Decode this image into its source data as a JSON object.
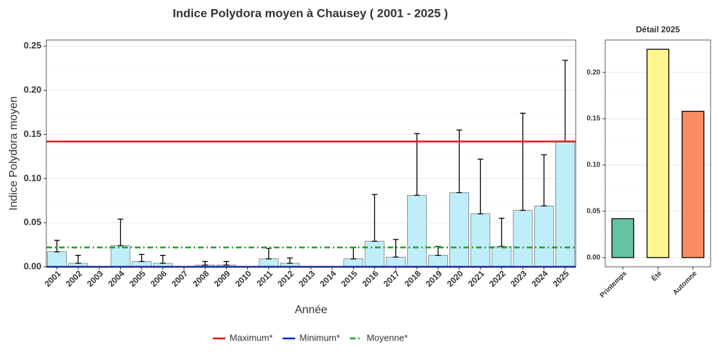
{
  "chart_data": [
    {
      "type": "bar",
      "title": "Indice Polydora moyen à Chausey ( 2001 - 2025 )",
      "x_label": "Année",
      "y_label": "Indice Polydora moyen",
      "categories": [
        "2001",
        "2002",
        "2003",
        "2004",
        "2005",
        "2006",
        "2007",
        "2008",
        "2009",
        "2010",
        "2011",
        "2012",
        "2013",
        "2014",
        "2015",
        "2016",
        "2017",
        "2018",
        "2019",
        "2020",
        "2021",
        "2022",
        "2023",
        "2024",
        "2025"
      ],
      "values": [
        0.017,
        0.004,
        0,
        0.024,
        0.006,
        0.004,
        0,
        0.002,
        0.002,
        0,
        0.009,
        0.004,
        0,
        0,
        0.009,
        0.029,
        0.011,
        0.081,
        0.013,
        0.084,
        0.06,
        0.023,
        0.064,
        0.069,
        0.142
      ],
      "upper": [
        0.03,
        0.013,
        null,
        0.054,
        0.014,
        0.013,
        null,
        0.006,
        0.006,
        null,
        0.021,
        0.01,
        null,
        null,
        0.022,
        0.082,
        0.031,
        0.151,
        0.023,
        0.155,
        0.122,
        0.055,
        0.174,
        0.127,
        0.234
      ],
      "color": "#bfeefa",
      "ylim": [
        0,
        0.257
      ],
      "yticks": [
        {
          "value": 0,
          "label": "0.00"
        },
        {
          "value": 0.05,
          "label": "0.05"
        },
        {
          "value": 0.1,
          "label": "0.10"
        },
        {
          "value": 0.15,
          "label": "0.15"
        },
        {
          "value": 0.2,
          "label": "0.20"
        },
        {
          "value": 0.25,
          "label": "0.25"
        }
      ],
      "grid": true,
      "reference_lines": [
        {
          "name": "Maximum*",
          "value": 0.142,
          "color": "#ee1111",
          "dash": "solid"
        },
        {
          "name": "Minimum*",
          "value": 0,
          "color": "#1122dd",
          "dash": "solid"
        },
        {
          "name": "Moyenne*",
          "value": 0.022,
          "color": "#22a022",
          "dash": "dashdot"
        }
      ],
      "legend": "bottom"
    },
    {
      "type": "bar",
      "title": "Détail 2025",
      "categories": [
        "Printemps",
        "Été",
        "Automne"
      ],
      "values": [
        0.042,
        0.225,
        0.158
      ],
      "colors": [
        "#66c2a5",
        "#fff68f",
        "#fc8d62"
      ],
      "ylim": [
        -0.01,
        0.235
      ],
      "yticks": [
        {
          "value": 0,
          "label": "0.00"
        },
        {
          "value": 0.05,
          "label": "0.05"
        },
        {
          "value": 0.1,
          "label": "0.10"
        },
        {
          "value": 0.15,
          "label": "0.15"
        },
        {
          "value": 0.2,
          "label": "0.20"
        }
      ],
      "grid": true
    }
  ]
}
